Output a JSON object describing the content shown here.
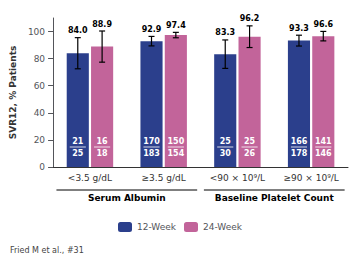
{
  "chart_data": {
    "type": "bar",
    "y_label": "SVR12, % Patients",
    "categories": [
      "<3.5 g/dL",
      "≥3.5 g/dL",
      "<90 × 10⁹/L",
      "≥90 × 10⁹/L"
    ],
    "category_groups": [
      {
        "label": "Serum Albumin",
        "categories": [
          "<3.5 g/dL",
          "≥3.5 g/dL"
        ]
      },
      {
        "label": "Baseline Platelet Count",
        "categories": [
          "<90 × 10⁹/L",
          "≥90 × 10⁹/L"
        ]
      }
    ],
    "series": [
      {
        "name": "12-Week",
        "color": "#2B3F8C",
        "values": [
          84.0,
          92.9,
          83.3,
          93.3
        ],
        "value_labels": [
          "84.0",
          "92.9",
          "83.3",
          "93.3"
        ],
        "err_lo": [
          11.5,
          3.5,
          10.5,
          4.0
        ],
        "err_hi": [
          11.5,
          3.5,
          10.5,
          4.0
        ],
        "responders": [
          21,
          170,
          25,
          166
        ],
        "patients": [
          25,
          183,
          30,
          178
        ]
      },
      {
        "name": "24-Week",
        "color": "#C2649A",
        "values": [
          88.9,
          97.4,
          96.2,
          96.6
        ],
        "value_labels": [
          "88.9",
          "97.4",
          "96.2",
          "96.6"
        ],
        "err_lo": [
          11.5,
          2.0,
          8.0,
          3.5
        ],
        "err_hi": [
          11.5,
          2.0,
          8.0,
          3.5
        ],
        "responders": [
          16,
          150,
          25,
          141
        ],
        "patients": [
          18,
          154,
          26,
          146
        ]
      }
    ],
    "ylim": [
      0,
      110
    ],
    "yticks": [
      0,
      20,
      40,
      60,
      80,
      100
    ],
    "grid": false,
    "legend": "bottom",
    "data_labels": true,
    "source": "Fried M et al., #31"
  }
}
